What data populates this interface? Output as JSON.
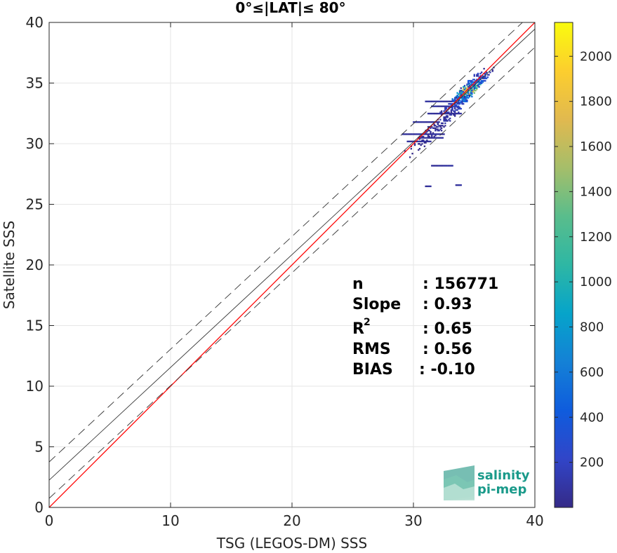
{
  "chart_data": {
    "type": "heatmap",
    "title": "0°≤|LAT|≤ 80°",
    "xlabel": "TSG (LEGOS-DM) SSS",
    "ylabel": "Satellite SSS",
    "xlim": [
      0,
      40
    ],
    "ylim": [
      0,
      40
    ],
    "xticks": [
      "0",
      "10",
      "20",
      "30",
      "40"
    ],
    "yticks": [
      "0",
      "5",
      "10",
      "15",
      "20",
      "25",
      "30",
      "35",
      "40"
    ],
    "grid": true,
    "colorbar": {
      "range": [
        0,
        2150
      ],
      "ticks": [
        "200",
        "400",
        "600",
        "800",
        "1000",
        "1200",
        "1400",
        "1600",
        "1800",
        "2000"
      ],
      "colormap": "parula"
    },
    "lines": [
      {
        "type": "identity",
        "intercept": 0,
        "slope": 1,
        "color": "#ff0000"
      },
      {
        "type": "fit",
        "intercept": 2.25,
        "slope": 0.93,
        "color": "#333333"
      },
      {
        "type": "fit-upper",
        "intercept": 3.75,
        "slope": 0.93,
        "color": "#333333",
        "dash": true
      },
      {
        "type": "fit-lower",
        "intercept": 0.75,
        "slope": 0.93,
        "color": "#333333",
        "dash": true
      }
    ],
    "density_clusters": [
      {
        "x": 34.5,
        "y": 34.4,
        "count": 2000
      },
      {
        "x": 34.2,
        "y": 34.0,
        "count": 900
      },
      {
        "x": 35.0,
        "y": 35.0,
        "count": 700
      },
      {
        "x": 33.8,
        "y": 33.6,
        "count": 500
      },
      {
        "x": 33.5,
        "y": 33.2,
        "count": 300
      },
      {
        "x": 33.0,
        "y": 32.8,
        "count": 200
      },
      {
        "x": 32.5,
        "y": 32.0,
        "count": 150
      },
      {
        "x": 32.0,
        "y": 31.5,
        "count": 100
      },
      {
        "x": 31.5,
        "y": 31.0,
        "count": 80
      },
      {
        "x": 31.0,
        "y": 30.5,
        "count": 60
      },
      {
        "x": 30.5,
        "y": 30.0,
        "count": 40
      },
      {
        "x": 35.3,
        "y": 35.3,
        "count": 400
      }
    ],
    "stats": {
      "n_label": "n",
      "n_value": ": 156771",
      "slope_label": "Slope",
      "slope_value": ": 0.93",
      "r2_label": "R",
      "r2_sup": "2",
      "r2_value": ": 0.65",
      "rms_label": "RMS",
      "rms_value": ": 0.56",
      "bias_label": "BIAS",
      "bias_value": ": -0.10"
    }
  },
  "logo": {
    "line1": "salinity",
    "line2": "pi-mep"
  }
}
